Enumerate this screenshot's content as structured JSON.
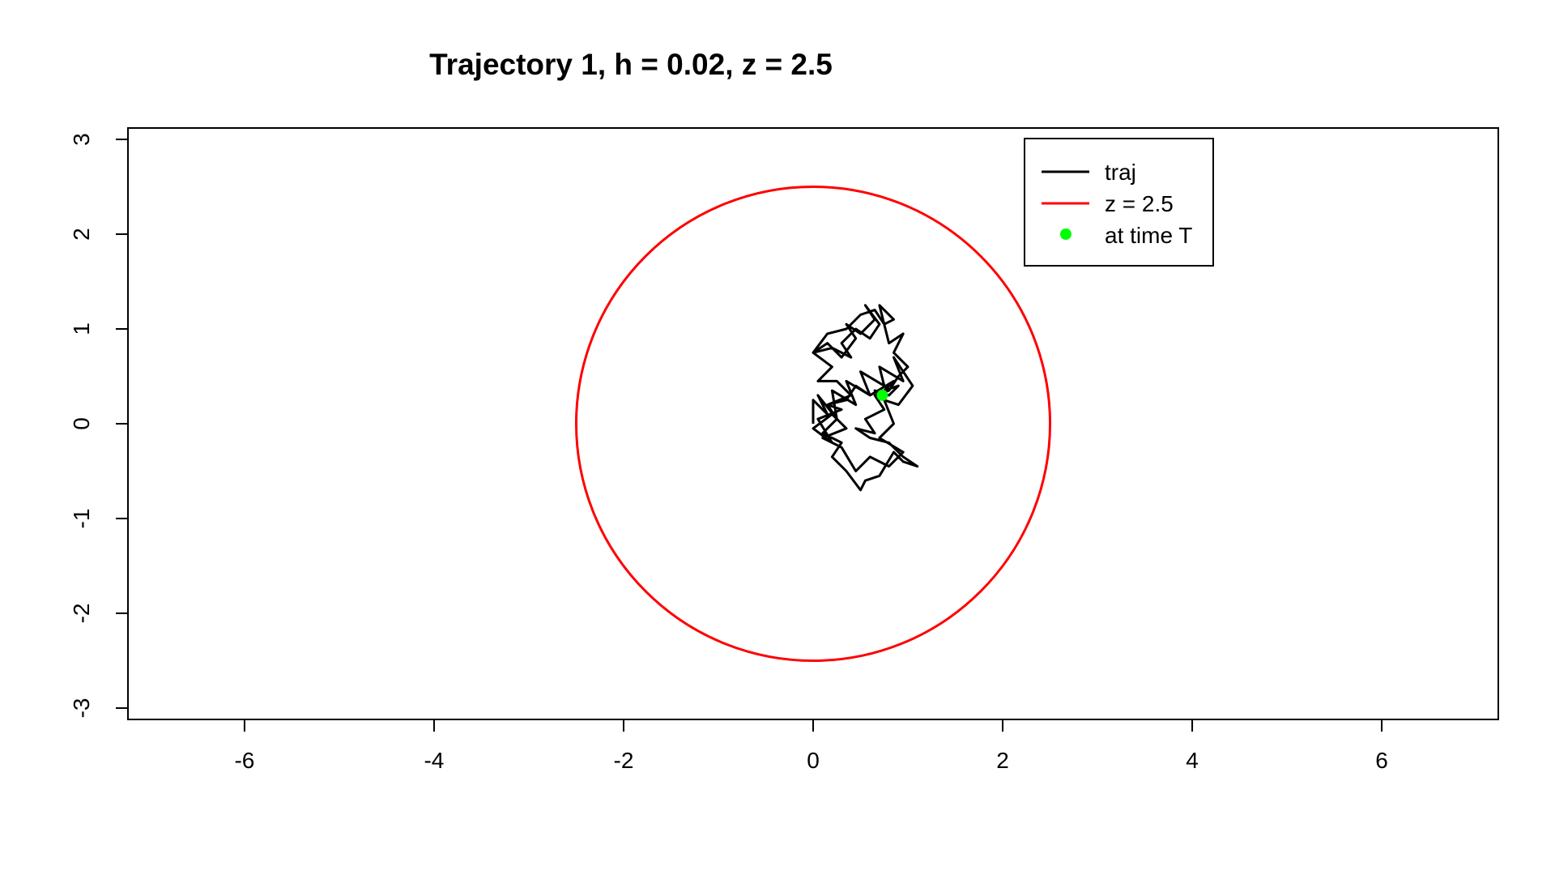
{
  "chart_data": {
    "type": "line",
    "title": "Trajectory 1, h = 0.02, z = 2.5",
    "xlabel": "",
    "ylabel": "",
    "xlim": [
      -7.23,
      7.23
    ],
    "ylim": [
      -3.12,
      3.12
    ],
    "x_ticks": [
      -6,
      -4,
      -2,
      0,
      2,
      4,
      6
    ],
    "y_ticks": [
      -3,
      -2,
      -1,
      0,
      1,
      2,
      3
    ],
    "x_tick_labels": [
      "-6",
      "-4",
      "-2",
      "0",
      "2",
      "4",
      "6"
    ],
    "y_tick_labels": [
      "-3",
      "-2",
      "-1",
      "0",
      "1",
      "2",
      "3"
    ],
    "grid": false,
    "legend_position": "top-right",
    "legend": [
      {
        "label": "traj",
        "kind": "line",
        "color": "#000000"
      },
      {
        "label": "z = 2.5",
        "kind": "line",
        "color": "#ff0000"
      },
      {
        "label": "at time T",
        "kind": "point",
        "color": "#00ff00"
      }
    ],
    "series": [
      {
        "name": "traj",
        "color": "#000000",
        "x": [
          0.0,
          0.0,
          0.15,
          0.05,
          0.25,
          0.2,
          0.45,
          0.35,
          0.6,
          0.5,
          0.75,
          0.7,
          0.95,
          0.85,
          1.05,
          0.9,
          0.75,
          0.85,
          0.7,
          0.95,
          0.8,
          0.6,
          0.45,
          0.3,
          0.1,
          0.35,
          0.2,
          0.0,
          0.2,
          0.05,
          0.3,
          0.15,
          0.4,
          0.25,
          0.05,
          0.2,
          0.0,
          0.15,
          0.3,
          0.45,
          0.35,
          0.5,
          0.65,
          0.55,
          0.7,
          0.6,
          0.45,
          0.3,
          0.4,
          0.2,
          0.0,
          0.15,
          0.35,
          0.5,
          0.65,
          0.75,
          0.85,
          0.7,
          0.8,
          0.95,
          0.85,
          1.0,
          0.9,
          0.8,
          0.65,
          0.75,
          0.55,
          0.65,
          0.45,
          0.6,
          0.8,
          0.95,
          1.1,
          0.95,
          0.85,
          0.7,
          0.55,
          0.5,
          0.35,
          0.2,
          0.3,
          0.1,
          0.25,
          0.15,
          0.35,
          0.45,
          0.6,
          0.85,
          0.75,
          0.9,
          0.8,
          0.65,
          0.7
        ],
        "y": [
          0.0,
          0.25,
          0.1,
          0.3,
          0.05,
          0.35,
          0.2,
          0.45,
          0.3,
          0.55,
          0.4,
          0.6,
          0.45,
          0.7,
          0.4,
          0.2,
          0.25,
          0.0,
          -0.15,
          -0.3,
          -0.45,
          -0.35,
          -0.5,
          -0.25,
          -0.15,
          -0.05,
          0.1,
          -0.05,
          -0.2,
          0.05,
          0.15,
          0.2,
          0.3,
          0.45,
          0.45,
          0.6,
          0.75,
          0.85,
          0.7,
          0.9,
          1.05,
          0.95,
          1.1,
          1.25,
          1.05,
          0.9,
          1.0,
          0.85,
          0.7,
          0.8,
          0.75,
          0.95,
          1.0,
          1.15,
          1.2,
          1.05,
          1.1,
          1.25,
          0.85,
          0.95,
          0.75,
          0.6,
          0.5,
          0.35,
          0.3,
          0.15,
          0.05,
          -0.1,
          -0.05,
          -0.15,
          -0.2,
          -0.35,
          -0.45,
          -0.4,
          -0.3,
          -0.55,
          -0.6,
          -0.7,
          -0.5,
          -0.35,
          -0.2,
          -0.1,
          0.05,
          0.2,
          0.25,
          0.4,
          0.3,
          0.45,
          0.35,
          0.4,
          0.3,
          0.35,
          0.3
        ]
      },
      {
        "name": "z = 2.5",
        "color": "#ff0000",
        "shape": "circle",
        "center": [
          0,
          0
        ],
        "radius": 2.5
      }
    ],
    "points": [
      {
        "name": "at time T",
        "x": 0.73,
        "y": 0.3,
        "color": "#00ff00"
      }
    ]
  }
}
